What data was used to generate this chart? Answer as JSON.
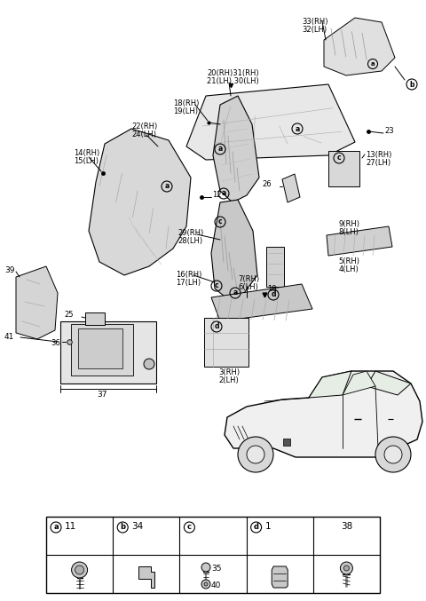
{
  "bg": "#ffffff",
  "lc": "#000000",
  "gray1": "#cccccc",
  "gray2": "#aaaaaa",
  "gray3": "#888888",
  "figsize": [
    4.8,
    6.77
  ],
  "dpi": 100,
  "parts": {
    "flap_33_32": {
      "label1": "33(RH)",
      "label2": "32(LH)"
    },
    "roof_20_21": {
      "label1": "20(RH)31(RH)",
      "label2": "21(LH) 30(LH)"
    },
    "pillar_18": {
      "label1": "18(RH)",
      "label2": "19(LH)"
    },
    "brace_22": {
      "label1": "22(RH)",
      "label2": "24(LH)"
    },
    "brace_14": {
      "label1": "14(RH)",
      "label2": "15(LH)"
    },
    "pillar_29": {
      "label1": "29(RH)",
      "label2": "28(LH)"
    },
    "pillar_16": {
      "label1": "16(RH)",
      "label2": "17(LH)"
    },
    "roof_13": {
      "label1": "13(RH)",
      "label2": "27(LH)"
    },
    "step_7": {
      "label1": "7(RH)",
      "label2": "6(LH)"
    },
    "step_3": {
      "label1": "3(RH)",
      "label2": "2(LH)"
    },
    "corner_9": {
      "label1": "9(RH)",
      "label2": "8(LH)"
    },
    "side_5": {
      "label1": "5(RH)",
      "label2": "4(LH)"
    },
    "num_12": "12",
    "num_23": "23",
    "num_26": "26",
    "num_10": "10",
    "num_25": "25",
    "num_36": "36",
    "num_37": "37",
    "num_39": "39",
    "num_41": "41",
    "leg_a": "a",
    "leg_b": "b",
    "leg_c": "c",
    "leg_d": "d",
    "leg_a_n": "11",
    "leg_b_n": "34",
    "leg_d_n": "1",
    "leg_last": "38",
    "leg_35": "35",
    "leg_40": "40"
  }
}
